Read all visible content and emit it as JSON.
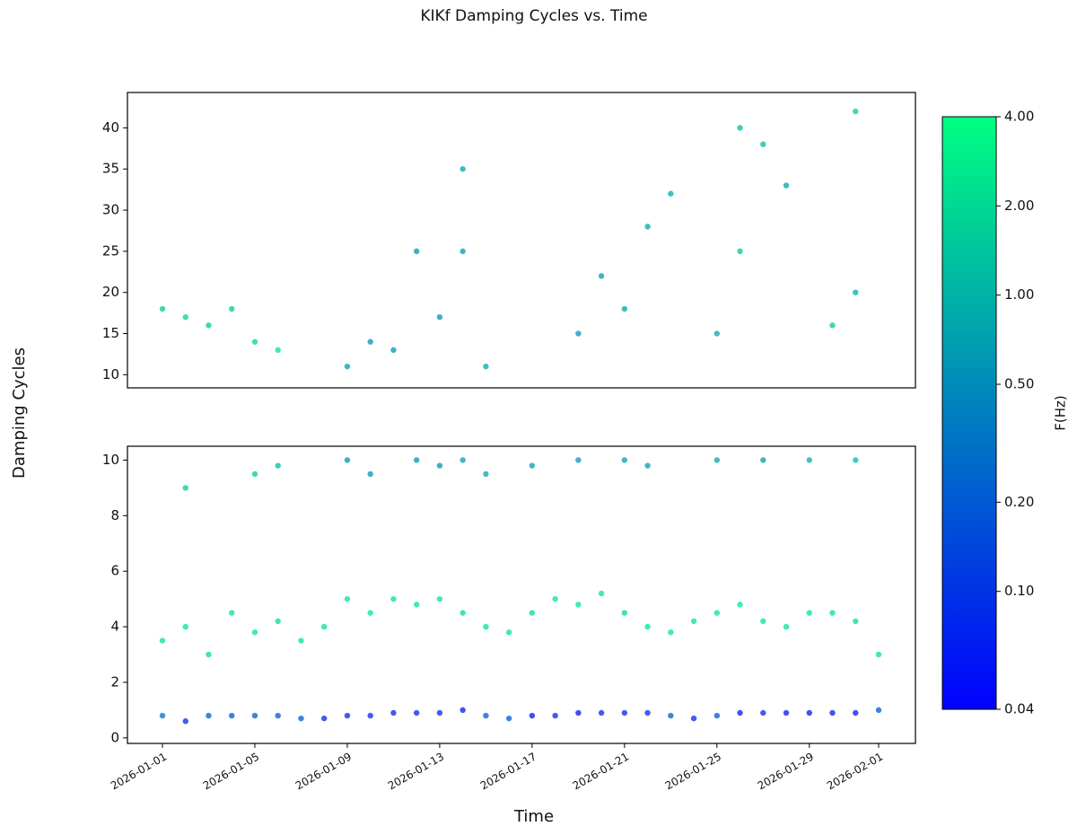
{
  "chart_data": {
    "type": "scatter",
    "title": "KIKf Damping Cycles vs. Time",
    "xlabel": "Time",
    "ylabel": "Damping Cycles",
    "xlim": [
      "2026-01-01",
      "2026-02-01"
    ],
    "xticks": [
      "2026-01-01",
      "2026-01-05",
      "2026-01-09",
      "2026-01-13",
      "2026-01-17",
      "2026-01-21",
      "2026-01-25",
      "2026-01-29",
      "2026-02-01"
    ],
    "colorbar": {
      "label": "F(Hz)",
      "log": true,
      "lim": [
        0.04,
        4
      ],
      "colormap": [
        "#0000ff",
        "#00ff80"
      ],
      "ticks": [
        {
          "value": 0.04,
          "label": "0.04"
        },
        {
          "value": 0.1,
          "label": "0.10"
        },
        {
          "value": 0.2,
          "label": "0.20"
        },
        {
          "value": 0.5,
          "label": "0.50"
        },
        {
          "value": 1,
          "label": "1.00"
        },
        {
          "value": 2,
          "label": "2.00"
        },
        {
          "value": 4,
          "label": "4.00"
        }
      ]
    },
    "panels": [
      {
        "ylim": [
          8.4,
          44.3
        ],
        "yticks": [
          10,
          15,
          20,
          25,
          30,
          35,
          40
        ],
        "series": [
          {
            "x": [
              "2026-01-01",
              "2026-01-02",
              "2026-01-03",
              "2026-01-04",
              "2026-01-05",
              "2026-01-06",
              "2026-01-09",
              "2026-01-10",
              "2026-01-11",
              "2026-01-12",
              "2026-01-13",
              "2026-01-14",
              "2026-01-14",
              "2026-01-15",
              "2026-01-19",
              "2026-01-20",
              "2026-01-21",
              "2026-01-22",
              "2026-01-23",
              "2026-01-25",
              "2026-01-26",
              "2026-01-26",
              "2026-01-27",
              "2026-01-28",
              "2026-01-30",
              "2026-01-31",
              "2026-01-31"
            ],
            "values": [
              18,
              17,
              16,
              18,
              14,
              13,
              11,
              14,
              13,
              25,
              17,
              35,
              25,
              11,
              15,
              22,
              18,
              28,
              32,
              15,
              40,
              25,
              38,
              33,
              16,
              42,
              20
            ],
            "freq": [
              1.5,
              1.8,
              1.5,
              1.5,
              1.8,
              2.5,
              0.7,
              0.6,
              0.6,
              0.6,
              0.6,
              0.8,
              0.7,
              0.8,
              0.6,
              0.7,
              0.8,
              0.8,
              0.9,
              0.8,
              1.2,
              1.5,
              1.2,
              0.8,
              1.5,
              1.5,
              1.0
            ]
          }
        ]
      },
      {
        "ylim": [
          -0.2,
          10.5
        ],
        "yticks": [
          0,
          2,
          4,
          6,
          8,
          10
        ],
        "series": [
          {
            "x": [
              "2026-01-01",
              "2026-01-02",
              "2026-01-03",
              "2026-01-04",
              "2026-01-05",
              "2026-01-06",
              "2026-01-07",
              "2026-01-08",
              "2026-01-09",
              "2026-01-10",
              "2026-01-11",
              "2026-01-12",
              "2026-01-13",
              "2026-01-14",
              "2026-01-15",
              "2026-01-16",
              "2026-01-17",
              "2026-01-18",
              "2026-01-19",
              "2026-01-20",
              "2026-01-21",
              "2026-01-22",
              "2026-01-23",
              "2026-01-24",
              "2026-01-25",
              "2026-01-26",
              "2026-01-27",
              "2026-01-28",
              "2026-01-29",
              "2026-01-30",
              "2026-01-31",
              "2026-02-01",
              "2026-01-01",
              "2026-01-02",
              "2026-01-03",
              "2026-01-04",
              "2026-01-05",
              "2026-01-06",
              "2026-01-07",
              "2026-01-08",
              "2026-01-09",
              "2026-01-10",
              "2026-01-11",
              "2026-01-12",
              "2026-01-13",
              "2026-01-14",
              "2026-01-15",
              "2026-01-16",
              "2026-01-17",
              "2026-01-18",
              "2026-01-19",
              "2026-01-20",
              "2026-01-21",
              "2026-01-22",
              "2026-01-23",
              "2026-01-24",
              "2026-01-25",
              "2026-01-26",
              "2026-01-27",
              "2026-01-28",
              "2026-01-29",
              "2026-01-30",
              "2026-01-31",
              "2026-02-01",
              "2026-01-02",
              "2026-01-05",
              "2026-01-06",
              "2026-01-09",
              "2026-01-10",
              "2026-01-12",
              "2026-01-13",
              "2026-01-14",
              "2026-01-15",
              "2026-01-17",
              "2026-01-19",
              "2026-01-21",
              "2026-01-22",
              "2026-01-25",
              "2026-01-27",
              "2026-01-29",
              "2026-01-31"
            ],
            "values": [
              0.8,
              0.6,
              0.8,
              0.8,
              0.8,
              0.8,
              0.7,
              0.7,
              0.8,
              0.8,
              0.9,
              0.9,
              0.9,
              1.0,
              0.8,
              0.7,
              0.8,
              0.8,
              0.9,
              0.9,
              0.9,
              0.9,
              0.8,
              0.7,
              0.8,
              0.9,
              0.9,
              0.9,
              0.9,
              0.9,
              0.9,
              1.0,
              3.5,
              4,
              3,
              4.5,
              3.8,
              4.2,
              3.5,
              4,
              5,
              4.5,
              5,
              4.8,
              5,
              4.5,
              4,
              3.8,
              4.5,
              5,
              4.8,
              5.2,
              4.5,
              4,
              3.8,
              4.2,
              4.5,
              4.8,
              4.2,
              4,
              4.5,
              4.5,
              4.2,
              3,
              9,
              9.5,
              9.8,
              10,
              9.5,
              10,
              9.8,
              10,
              9.5,
              9.8,
              10,
              10,
              9.8,
              10,
              10,
              10,
              10
            ],
            "freq": [
              0.3,
              0.08,
              0.2,
              0.2,
              0.2,
              0.2,
              0.2,
              0.08,
              0.08,
              0.08,
              0.08,
              0.08,
              0.08,
              0.06,
              0.2,
              0.2,
              0.06,
              0.08,
              0.06,
              0.08,
              0.08,
              0.08,
              0.2,
              0.08,
              0.2,
              0.06,
              0.08,
              0.06,
              0.06,
              0.06,
              0.06,
              0.2,
              2.5,
              2.5,
              2.2,
              2.5,
              2.5,
              2.2,
              2.5,
              2.5,
              2.5,
              2.8,
              2.5,
              2.5,
              2.5,
              2.2,
              2.5,
              2.5,
              2.2,
              2.5,
              2.5,
              2.5,
              2.2,
              2.5,
              2.5,
              2.5,
              2.5,
              2.8,
              2.5,
              2.5,
              2.5,
              2.5,
              2.2,
              2.5,
              1.5,
              1.5,
              1.2,
              0.6,
              0.6,
              0.6,
              0.6,
              0.7,
              0.8,
              0.7,
              0.6,
              0.7,
              0.7,
              0.8,
              0.7,
              1.0,
              1.2
            ]
          }
        ]
      }
    ]
  }
}
